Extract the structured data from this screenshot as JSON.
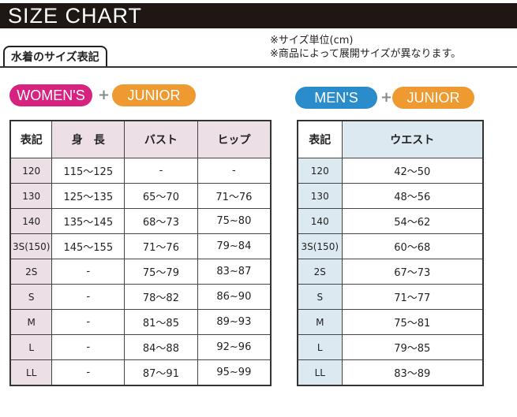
{
  "title": "SIZE CHART",
  "subtitle": "水着のサイズ表記",
  "notes": [
    "※サイズ単位(cm)",
    "※商品によって展開サイズが異なります。"
  ],
  "colors": {
    "women": "#d8227f",
    "junior": "#ee9a30",
    "men": "#2b8ccc",
    "header_bar": "#1e1714"
  },
  "women": {
    "badge": "WOMEN'S",
    "plus": "+",
    "junior": "JUNIOR",
    "headers": [
      "表記",
      "身　長",
      "バスト",
      "ヒップ"
    ],
    "rows": [
      [
        "120",
        "115～125",
        "-",
        "-"
      ],
      [
        "130",
        "125～135",
        "65～70",
        "71～76"
      ],
      [
        "140",
        "135～145",
        "68～73",
        "75~80"
      ],
      [
        "3S(150)",
        "145～155",
        "71～76",
        "79~84"
      ],
      [
        "2S",
        "-",
        "75～79",
        "83~87"
      ],
      [
        "S",
        "-",
        "78～82",
        "86~90"
      ],
      [
        "M",
        "-",
        "81～85",
        "89~93"
      ],
      [
        "L",
        "-",
        "84～88",
        "92~96"
      ],
      [
        "LL",
        "-",
        "87～91",
        "95~99"
      ]
    ]
  },
  "men": {
    "badge": "MEN'S",
    "plus": "+",
    "junior": "JUNIOR",
    "headers": [
      "表記",
      "ウエスト"
    ],
    "rows": [
      [
        "120",
        "42～50"
      ],
      [
        "130",
        "48～56"
      ],
      [
        "140",
        "54～62"
      ],
      [
        "3S(150)",
        "60～68"
      ],
      [
        "2S",
        "67～73"
      ],
      [
        "S",
        "71～77"
      ],
      [
        "M",
        "75～81"
      ],
      [
        "L",
        "79～85"
      ],
      [
        "LL",
        "83～89"
      ]
    ]
  }
}
